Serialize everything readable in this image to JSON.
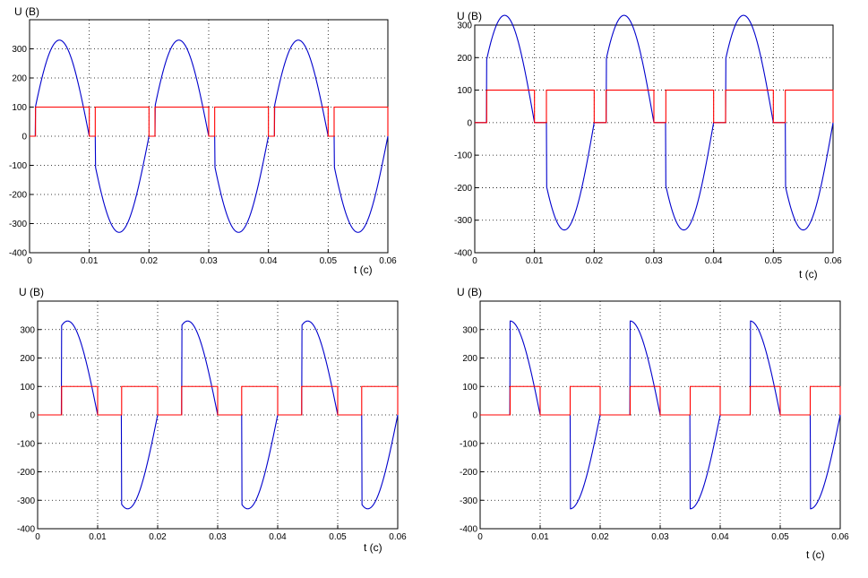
{
  "chart_data": [
    {
      "type": "line",
      "title": "",
      "xlabel": "t (c)",
      "ylabel": "U (B)",
      "xlim": [
        0,
        0.06
      ],
      "ylim": [
        -400,
        400
      ],
      "x_ticks": [
        "0",
        "0.01",
        "0.02",
        "0.03",
        "0.04",
        "0.05",
        "0.06"
      ],
      "y_ticks": [
        "300",
        "200",
        "100",
        "0",
        "-100",
        "-200",
        "-300",
        "-400"
      ],
      "grid": true,
      "firing_angle_deg": 18,
      "amplitude": 330,
      "frequency_hz": 50,
      "pulse_height": 100,
      "series": [
        {
          "color": "#0000cc",
          "kind": "rectified_sine"
        },
        {
          "color": "#ff0000",
          "kind": "gate_pulses"
        }
      ]
    },
    {
      "type": "line",
      "title": "",
      "xlabel": "t (c)",
      "ylabel": "U (B)",
      "xlim": [
        0,
        0.06
      ],
      "ylim": [
        -400,
        300
      ],
      "x_ticks": [
        "0",
        "0.01",
        "0.02",
        "0.03",
        "0.04",
        "0.05",
        "0.06"
      ],
      "y_ticks": [
        "300",
        "200",
        "100",
        "0",
        "-100",
        "-200",
        "-300",
        "-400"
      ],
      "grid": true,
      "firing_angle_deg": 36,
      "amplitude": 330,
      "frequency_hz": 50,
      "pulse_height": 100,
      "series": [
        {
          "color": "#0000cc",
          "kind": "rectified_sine"
        },
        {
          "color": "#ff0000",
          "kind": "gate_pulses"
        }
      ]
    },
    {
      "type": "line",
      "title": "",
      "xlabel": "t (c)",
      "ylabel": "U (B)",
      "xlim": [
        0,
        0.06
      ],
      "ylim": [
        -400,
        400
      ],
      "x_ticks": [
        "0",
        "0.01",
        "0.02",
        "0.03",
        "0.04",
        "0.05",
        "0.06"
      ],
      "y_ticks": [
        "300",
        "200",
        "100",
        "0",
        "-100",
        "-200",
        "-300",
        "-400"
      ],
      "grid": true,
      "firing_angle_deg": 72,
      "amplitude": 330,
      "frequency_hz": 50,
      "pulse_height": 100,
      "series": [
        {
          "color": "#0000cc",
          "kind": "rectified_sine"
        },
        {
          "color": "#ff0000",
          "kind": "gate_pulses"
        }
      ]
    },
    {
      "type": "line",
      "title": "",
      "xlabel": "t (c)",
      "ylabel": "U (B)",
      "xlim": [
        0,
        0.06
      ],
      "ylim": [
        -400,
        400
      ],
      "x_ticks": [
        "0",
        "0.01",
        "0.02",
        "0.03",
        "0.04",
        "0.05",
        "0.06"
      ],
      "y_ticks": [
        "300",
        "200",
        "100",
        "0",
        "-100",
        "-200",
        "-300",
        "-400"
      ],
      "grid": true,
      "firing_angle_deg": 90,
      "amplitude": 330,
      "frequency_hz": 50,
      "pulse_height": 100,
      "series": [
        {
          "color": "#0000cc",
          "kind": "rectified_sine"
        },
        {
          "color": "#ff0000",
          "kind": "gate_pulses"
        }
      ]
    }
  ]
}
